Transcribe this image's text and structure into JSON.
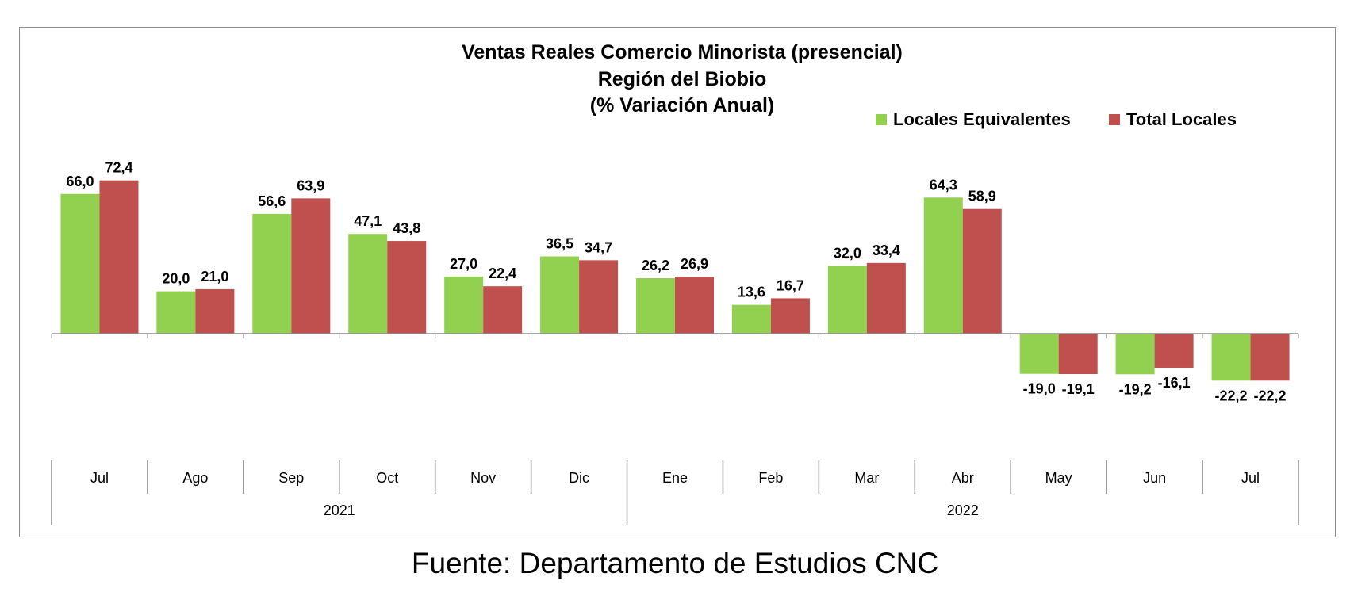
{
  "colors": {
    "equivalentes": "#92d050",
    "total": "#c0504d",
    "axis": "#8c8c8c"
  },
  "chart_data": {
    "type": "bar",
    "title_lines": [
      "Ventas Reales Comercio Minorista (presencial)",
      "Región del Biobio",
      "(% Variación Anual)"
    ],
    "categories": [
      "Jul",
      "Ago",
      "Sep",
      "Oct",
      "Nov",
      "Dic",
      "Ene",
      "Feb",
      "Mar",
      "Abr",
      "May",
      "Jun",
      "Jul"
    ],
    "groups": [
      {
        "label": "2021",
        "count": 6
      },
      {
        "label": "2022",
        "count": 7
      }
    ],
    "series": [
      {
        "name": "Locales Equivalentes",
        "color": "#92d050",
        "values": [
          66.0,
          20.0,
          56.6,
          47.1,
          27.0,
          36.5,
          26.2,
          13.6,
          32.0,
          64.3,
          -19.0,
          -19.2,
          -22.2
        ],
        "labels": [
          "66,0",
          "20,0",
          "56,6",
          "47,1",
          "27,0",
          "36,5",
          "26,2",
          "13,6",
          "32,0",
          "64,3",
          "-19,0",
          "-19,2",
          "-22,2"
        ]
      },
      {
        "name": "Total Locales",
        "color": "#c0504d",
        "values": [
          72.4,
          21.0,
          63.9,
          43.8,
          22.4,
          34.7,
          26.9,
          16.7,
          33.4,
          58.9,
          -19.1,
          -16.1,
          -22.2
        ],
        "labels": [
          "72,4",
          "21,0",
          "63,9",
          "43,8",
          "22,4",
          "34,7",
          "26,9",
          "16,7",
          "33,4",
          "58,9",
          "-19,1",
          "-16,1",
          "-22,2"
        ]
      }
    ],
    "legend_position": "top-right",
    "grid": false
  },
  "footer": {
    "source": "Fuente: Departamento de Estudios CNC"
  }
}
